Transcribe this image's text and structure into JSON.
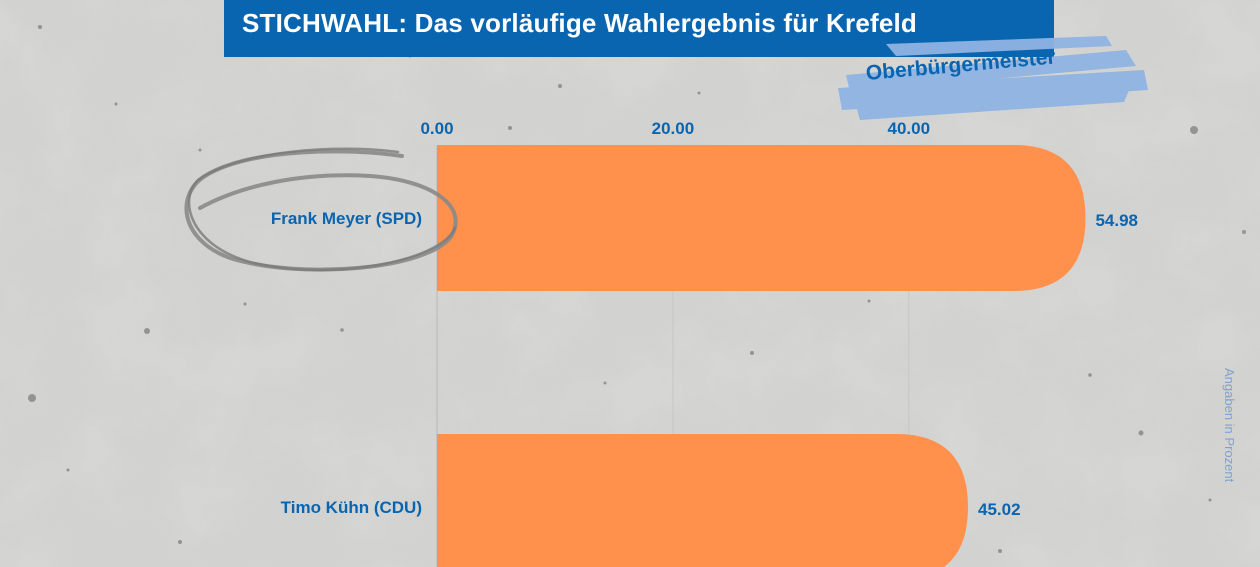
{
  "header": {
    "title": "STICHWAHL: Das vorläufige Wahlergebnis für Krefeld",
    "subtitle": "Oberbürgermeister"
  },
  "note": "Angaben in Prozent",
  "colors": {
    "banner": "#0a65b0",
    "bar": "#ff914d",
    "text_blue": "#0a65b0",
    "tag_blue": "#8fb4e3",
    "note": "#7fa3cf",
    "circle": "#8a8a8a"
  },
  "chart_data": {
    "type": "bar",
    "orientation": "horizontal",
    "categories": [
      "Frank Meyer (SPD)",
      "Timo Kühn (CDU)"
    ],
    "values": [
      54.98,
      45.02
    ],
    "value_labels": [
      "54.98",
      "45.02"
    ],
    "xticks": [
      0,
      20,
      40
    ],
    "xtick_labels": [
      "0.00",
      "20.00",
      "40.00"
    ],
    "xlim": [
      0,
      58.5
    ],
    "grid": true,
    "highlighted": "Frank Meyer (SPD)"
  }
}
